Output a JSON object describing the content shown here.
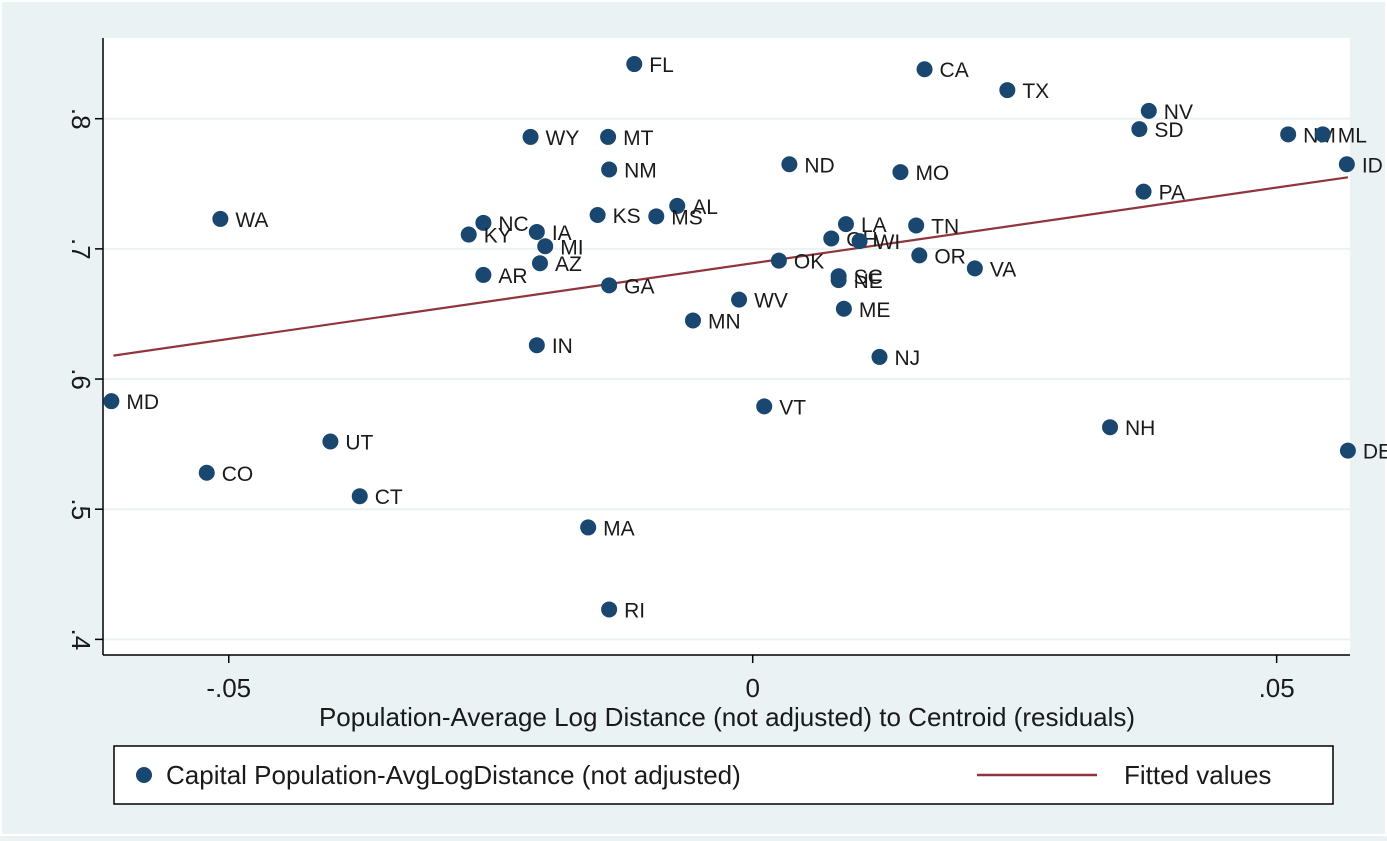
{
  "chart_data": {
    "type": "scatter",
    "title": "",
    "xlabel": "Population-Average Log Distance (not adjusted) to Centroid (residuals)",
    "ylabel": "",
    "xlim": [
      -0.062,
      0.057
    ],
    "ylim": [
      0.388,
      0.862
    ],
    "xticks": [
      {
        "value": -0.05,
        "label": "-.05"
      },
      {
        "value": 0,
        "label": "0"
      },
      {
        "value": 0.05,
        "label": ".05"
      }
    ],
    "yticks": [
      {
        "value": 0.4,
        "label": ".4"
      },
      {
        "value": 0.5,
        "label": ".5"
      },
      {
        "value": 0.6,
        "label": ".6"
      },
      {
        "value": 0.7,
        "label": ".7"
      },
      {
        "value": 0.8,
        "label": ".8"
      }
    ],
    "grid": "horizontal",
    "legend_position": "bottom",
    "colors": {
      "points": "#1a476f",
      "fit": "#90353b",
      "background": "#eaf2f3",
      "plot": "#ffffff",
      "grid": "#eaf2f3"
    },
    "series": [
      {
        "name": "Capital Population-AvgLogDistance (not adjusted)",
        "kind": "scatter",
        "points": [
          {
            "label": "FL",
            "x": -0.0113,
            "y": 0.842
          },
          {
            "label": "CA",
            "x": 0.0164,
            "y": 0.838
          },
          {
            "label": "TX",
            "x": 0.0243,
            "y": 0.822
          },
          {
            "label": "NV",
            "x": 0.0378,
            "y": 0.806
          },
          {
            "label": "SD",
            "x": 0.0369,
            "y": 0.792
          },
          {
            "label": "NM",
            "x": 0.0511,
            "y": 0.788
          },
          {
            "label": "ML",
            "x": 0.0544,
            "y": 0.788
          },
          {
            "label": "WY",
            "x": -0.0212,
            "y": 0.786
          },
          {
            "label": "MT",
            "x": -0.0138,
            "y": 0.786
          },
          {
            "label": "ID",
            "x": 0.0567,
            "y": 0.765
          },
          {
            "label": "ND",
            "x": 0.0035,
            "y": 0.765
          },
          {
            "label": "NM",
            "x": -0.0137,
            "y": 0.761
          },
          {
            "label": "MO",
            "x": 0.0141,
            "y": 0.759
          },
          {
            "label": "PA",
            "x": 0.0373,
            "y": 0.744
          },
          {
            "label": "AL",
            "x": -0.0072,
            "y": 0.733
          },
          {
            "label": "KS",
            "x": -0.0148,
            "y": 0.726
          },
          {
            "label": "MS",
            "x": -0.0092,
            "y": 0.725
          },
          {
            "label": "WA",
            "x": -0.0508,
            "y": 0.723
          },
          {
            "label": "NC",
            "x": -0.0257,
            "y": 0.72
          },
          {
            "label": "LA",
            "x": 0.0089,
            "y": 0.719
          },
          {
            "label": "TN",
            "x": 0.0156,
            "y": 0.718
          },
          {
            "label": "IA",
            "x": -0.0206,
            "y": 0.713
          },
          {
            "label": "KY",
            "x": -0.0271,
            "y": 0.711
          },
          {
            "label": "OH",
            "x": 0.0075,
            "y": 0.708
          },
          {
            "label": "WI",
            "x": 0.0102,
            "y": 0.706
          },
          {
            "label": "MI",
            "x": -0.0198,
            "y": 0.702
          },
          {
            "label": "OR",
            "x": 0.0159,
            "y": 0.695
          },
          {
            "label": "OK",
            "x": 0.0025,
            "y": 0.691
          },
          {
            "label": "AZ",
            "x": -0.0203,
            "y": 0.689
          },
          {
            "label": "VA",
            "x": 0.0212,
            "y": 0.685
          },
          {
            "label": "AR",
            "x": -0.0257,
            "y": 0.68
          },
          {
            "label": "SC",
            "x": 0.0082,
            "y": 0.679
          },
          {
            "label": "NE",
            "x": 0.0082,
            "y": 0.676
          },
          {
            "label": "GA",
            "x": -0.0137,
            "y": 0.672
          },
          {
            "label": "WV",
            "x": -0.0013,
            "y": 0.661
          },
          {
            "label": "ME",
            "x": 0.0087,
            "y": 0.654
          },
          {
            "label": "MN",
            "x": -0.0057,
            "y": 0.645
          },
          {
            "label": "IN",
            "x": -0.0206,
            "y": 0.626
          },
          {
            "label": "NJ",
            "x": 0.0121,
            "y": 0.617
          },
          {
            "label": "MD",
            "x": -0.0612,
            "y": 0.583
          },
          {
            "label": "VT",
            "x": 0.0011,
            "y": 0.579
          },
          {
            "label": "NH",
            "x": 0.0341,
            "y": 0.563
          },
          {
            "label": "UT",
            "x": -0.0403,
            "y": 0.552
          },
          {
            "label": "DE",
            "x": 0.0568,
            "y": 0.545
          },
          {
            "label": "CO",
            "x": -0.0521,
            "y": 0.528
          },
          {
            "label": "CT",
            "x": -0.0375,
            "y": 0.51
          },
          {
            "label": "MA",
            "x": -0.0157,
            "y": 0.486
          },
          {
            "label": "RI",
            "x": -0.0137,
            "y": 0.423
          }
        ]
      },
      {
        "name": "Fitted values",
        "kind": "line",
        "points": [
          {
            "x": -0.061,
            "y": 0.618
          },
          {
            "x": 0.0568,
            "y": 0.755
          }
        ]
      }
    ]
  }
}
